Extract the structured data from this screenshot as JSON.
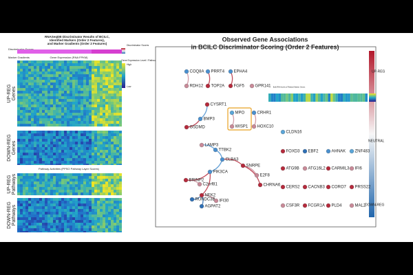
{
  "left": {
    "title_lines": [
      "RNASeqDB Discriminator Results of BCILC,",
      "Identified Markers (Order 2 Features),",
      "and Marker Gradients (Order 2 Features)"
    ],
    "discriminator_label": "Discriminator Scores",
    "marker_label": "Marker Gradients",
    "expression_label": "Gene Expression (RNA FPKM)",
    "pathway_label": "Pathway Activities (PPSO Pathway Layer Scores)",
    "sections": [
      [
        "UP-REG",
        "Genes"
      ],
      [
        "DOWN-REG",
        "Genes"
      ],
      [
        "UP-REG",
        "Pathways"
      ],
      [
        "DOWN-REG",
        "Pathways"
      ]
    ],
    "legend": {
      "scores": "Discriminator Scores",
      "expression": "Gene Expression Level / Pathway Activity",
      "high": "High",
      "low": "Low"
    }
  },
  "right": {
    "title_lines": [
      "Observed Gene Associations",
      "in BCILC Discriminator Scoring (Order 2 Features)"
    ],
    "colorbar": {
      "top": "UP-REG",
      "mid": "NEUTRAL",
      "bottom": "DOWN-REG"
    },
    "inset_title": "Bulk RNA levels of Related Marker Genes",
    "nodes": [
      {
        "label": "COQ8A",
        "color": "#4a90cf"
      },
      {
        "label": "RDH12",
        "color": "#c98a98"
      },
      {
        "label": "PRRT4",
        "color": "#4a90cf"
      },
      {
        "label": "TOP2A",
        "color": "#b52a3c"
      },
      {
        "label": "EPHA4",
        "color": "#4a90cf"
      },
      {
        "label": "FGF5",
        "color": "#b52a3c"
      },
      {
        "label": "GPR141",
        "color": "#c98a98"
      },
      {
        "label": "CYSRT1",
        "color": "#b52a3c"
      },
      {
        "label": "BMP3",
        "color": "#4a90cf"
      },
      {
        "label": "GSDMD",
        "color": "#b52a3c"
      },
      {
        "label": "MPO",
        "color": "#5aa5d8"
      },
      {
        "label": "WISP1",
        "color": "#c98a98"
      },
      {
        "label": "CRHR1",
        "color": "#4a90cf"
      },
      {
        "label": "HOXC10",
        "color": "#c98a98"
      },
      {
        "label": "CLDN16",
        "color": "#5aa5d8"
      },
      {
        "label": "LAMP3",
        "color": "#c98a98"
      },
      {
        "label": "TTBK2",
        "color": "#4a90cf"
      },
      {
        "label": "CLBA3",
        "color": "#4a90cf"
      },
      {
        "label": "SNRPE",
        "color": "#b52a3c"
      },
      {
        "label": "E2F8",
        "color": "#c98a98"
      },
      {
        "label": "CHRNA6",
        "color": "#b52a3c"
      },
      {
        "label": "PIK3CA",
        "color": "#4a90cf"
      },
      {
        "label": "BRINP2",
        "color": "#b52a3c"
      },
      {
        "label": "C2orf81",
        "color": "#c98a98"
      },
      {
        "label": "NEK2",
        "color": "#b52a3c"
      },
      {
        "label": "RUNDC3B",
        "color": "#2e6fb5"
      },
      {
        "label": "IFI30",
        "color": "#c98a98"
      },
      {
        "label": "AGPAT2",
        "color": "#2e6fb5"
      },
      {
        "label": "FOXD3",
        "color": "#b52a3c"
      },
      {
        "label": "EBF2",
        "color": "#2e6fb5"
      },
      {
        "label": "AHNAK",
        "color": "#4a90cf"
      },
      {
        "label": "ZNF483",
        "color": "#5aa5d8"
      },
      {
        "label": "ATG9B",
        "color": "#b52a3c"
      },
      {
        "label": "ATG16L2",
        "color": "#c98a98"
      },
      {
        "label": "CARMIL3",
        "color": "#b52a3c"
      },
      {
        "label": "IFI6",
        "color": "#c98a98"
      },
      {
        "label": "CERS2",
        "color": "#b52a3c"
      },
      {
        "label": "CACNB3",
        "color": "#b52a3c"
      },
      {
        "label": "CORO7",
        "color": "#b52a3c"
      },
      {
        "label": "PRSS22",
        "color": "#b52a3c"
      },
      {
        "label": "CSF3R",
        "color": "#c98a98"
      },
      {
        "label": "FCGR1A",
        "color": "#b52a3c"
      },
      {
        "label": "PLD4",
        "color": "#b52a3c"
      },
      {
        "label": "MAL2",
        "color": "#c98a98"
      }
    ]
  }
}
